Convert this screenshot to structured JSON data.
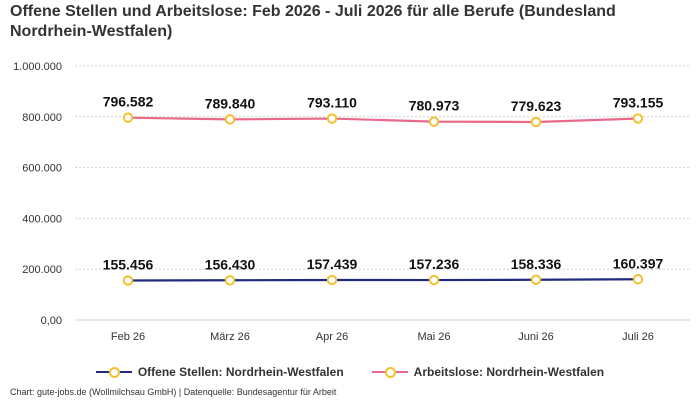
{
  "title": "Offene Stellen und Arbeitslose: Feb 2026 - Juli 2026 für alle Berufe (Bundesland Nordrhein-Westfalen)",
  "credits": "Chart: gute-jobs.de (Wollmilchsau GmbH) | Datenquelle: Bundesagentur für Arbeit",
  "chart_data": {
    "type": "line",
    "title": "Offene Stellen und Arbeitslose: Feb 2026 - Juli 2026 für alle Berufe (Bundesland Nordrhein-Westfalen)",
    "categories": [
      "Feb 26",
      "März 26",
      "Apr 26",
      "Mai 26",
      "Juni 26",
      "Juli 26"
    ],
    "y_ticks": [
      "0,00",
      "200.000",
      "400.000",
      "600.000",
      "800.000",
      "1.000.000"
    ],
    "ylim": [
      0,
      1000000
    ],
    "grid": true,
    "legend_position": "bottom",
    "series": [
      {
        "name": "Offene Stellen: Nordrhein-Westfalen",
        "color": "#1f2a80",
        "values": [
          155456,
          156430,
          157439,
          157236,
          158336,
          160397
        ],
        "labels": [
          "155.456",
          "156.430",
          "157.439",
          "157.236",
          "158.336",
          "160.397"
        ]
      },
      {
        "name": "Arbeitslose: Nordrhein-Westfalen",
        "color": "#e8698a",
        "values": [
          796582,
          789840,
          793110,
          780973,
          779623,
          793155
        ],
        "labels": [
          "796.582",
          "789.840",
          "793.110",
          "780.973",
          "779.623",
          "793.155"
        ]
      }
    ],
    "marker_color": "#f2c12e"
  }
}
